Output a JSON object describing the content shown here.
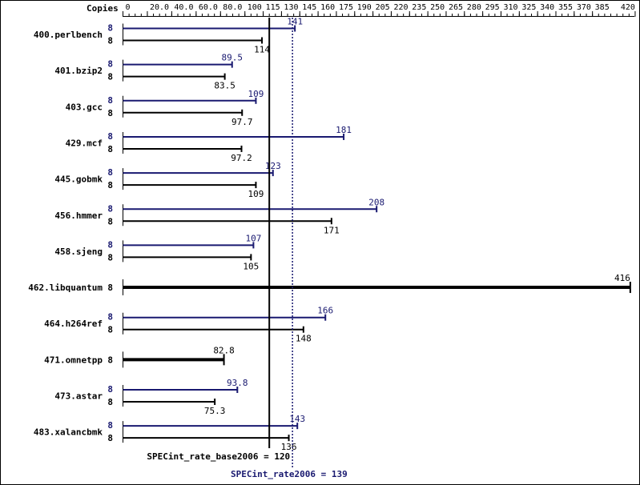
{
  "chart_data": {
    "type": "bar",
    "orientation": "horizontal",
    "axis_title": "Copies",
    "xlim": [
      0,
      420
    ],
    "ticks": [
      0,
      20.0,
      40.0,
      60.0,
      80.0,
      100,
      115,
      130,
      145,
      160,
      175,
      190,
      205,
      220,
      235,
      250,
      265,
      280,
      295,
      310,
      325,
      340,
      355,
      370,
      385,
      420
    ],
    "tick_labels": [
      "0",
      "20.0",
      "40.0",
      "60.0",
      "80.0",
      "100",
      "115",
      "130",
      "145",
      "160",
      "175",
      "190",
      "205",
      "220",
      "235",
      "250",
      "265",
      "280",
      "295",
      "310",
      "325",
      "340",
      "355",
      "370",
      "385",
      "420"
    ],
    "colors": {
      "peak": "#191970",
      "base": "#000000",
      "background": "#ffffff"
    },
    "benchmarks": [
      {
        "name": "400.perlbench",
        "peak": {
          "copies": "8",
          "value": 141,
          "label": "141"
        },
        "base": {
          "copies": "8",
          "value": 114,
          "label": "114"
        }
      },
      {
        "name": "401.bzip2",
        "peak": {
          "copies": "8",
          "value": 89.5,
          "label": "89.5"
        },
        "base": {
          "copies": "8",
          "value": 83.5,
          "label": "83.5"
        }
      },
      {
        "name": "403.gcc",
        "peak": {
          "copies": "8",
          "value": 109,
          "label": "109"
        },
        "base": {
          "copies": "8",
          "value": 97.7,
          "label": "97.7"
        }
      },
      {
        "name": "429.mcf",
        "peak": {
          "copies": "8",
          "value": 181,
          "label": "181"
        },
        "base": {
          "copies": "8",
          "value": 97.2,
          "label": "97.2"
        }
      },
      {
        "name": "445.gobmk",
        "peak": {
          "copies": "8",
          "value": 123,
          "label": "123"
        },
        "base": {
          "copies": "8",
          "value": 109,
          "label": "109"
        }
      },
      {
        "name": "456.hmmer",
        "peak": {
          "copies": "8",
          "value": 208,
          "label": "208"
        },
        "base": {
          "copies": "8",
          "value": 171,
          "label": "171"
        }
      },
      {
        "name": "458.sjeng",
        "peak": {
          "copies": "8",
          "value": 107,
          "label": "107"
        },
        "base": {
          "copies": "8",
          "value": 105,
          "label": "105"
        }
      },
      {
        "name": "462.libquantum",
        "single": {
          "copies": "8",
          "value": 416,
          "label": "416"
        }
      },
      {
        "name": "464.h264ref",
        "peak": {
          "copies": "8",
          "value": 166,
          "label": "166"
        },
        "base": {
          "copies": "8",
          "value": 148,
          "label": "148"
        }
      },
      {
        "name": "471.omnetpp",
        "single": {
          "copies": "8",
          "value": 82.8,
          "label": "82.8"
        }
      },
      {
        "name": "473.astar",
        "peak": {
          "copies": "8",
          "value": 93.8,
          "label": "93.8"
        },
        "base": {
          "copies": "8",
          "value": 75.3,
          "label": "75.3"
        }
      },
      {
        "name": "483.xalancbmk",
        "peak": {
          "copies": "8",
          "value": 143,
          "label": "143"
        },
        "base": {
          "copies": "8",
          "value": 136,
          "label": "136"
        }
      }
    ],
    "reference_lines": [
      {
        "name": "SPECint_rate_base2006",
        "value": 120,
        "label": "SPECint_rate_base2006 = 120",
        "style": "solid"
      },
      {
        "name": "SPECint_rate2006",
        "value": 139,
        "label": "SPECint_rate2006 = 139",
        "style": "dotted"
      }
    ]
  }
}
